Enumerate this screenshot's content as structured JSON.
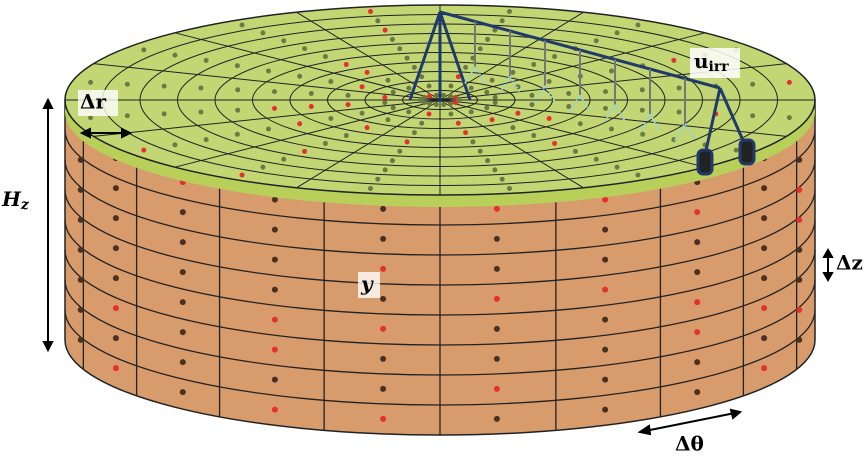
{
  "labels": {
    "delta_r": "Δr",
    "height": {
      "main": "H",
      "sub": "z"
    },
    "irrigation": {
      "main": "u",
      "sub": "irr"
    },
    "state": "y",
    "delta_z": "Δz",
    "delta_theta": "Δθ"
  }
}
